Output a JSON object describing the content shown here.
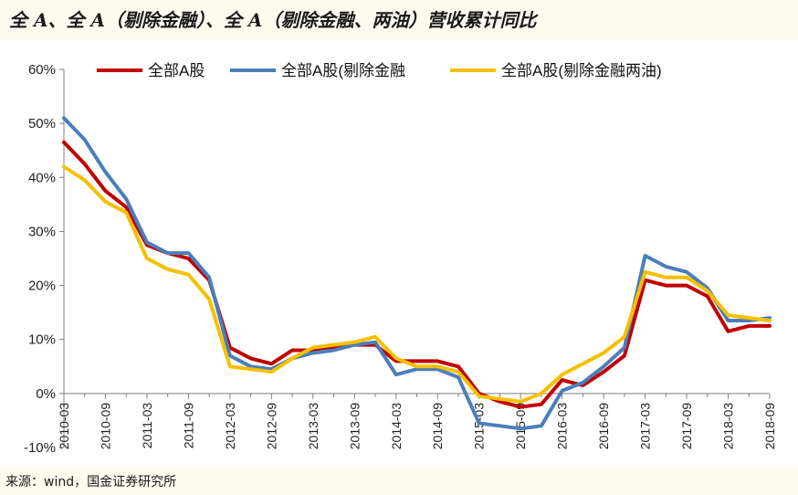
{
  "title": "全 A、全 A（剔除金融）、全 A（剔除金融、两油）营收累计同比",
  "source": "来源：wind，国金证券研究所",
  "chart_data": {
    "type": "line",
    "title": "全 A、全 A（剔除金融）、全 A（剔除金融、两油）营收累计同比",
    "xlabel": "",
    "ylabel": "",
    "ylim": [
      -10,
      60
    ],
    "yticks": [
      -10,
      0,
      10,
      20,
      30,
      40,
      50,
      60
    ],
    "ytick_labels": [
      "-10%",
      "0%",
      "10%",
      "20%",
      "30%",
      "40%",
      "50%",
      "60%"
    ],
    "x_tick_labels": [
      "2010-03",
      "2010-09",
      "2011-03",
      "2011-09",
      "2012-03",
      "2012-09",
      "2013-03",
      "2013-09",
      "2014-03",
      "2014-09",
      "2015-03",
      "2015-09",
      "2016-03",
      "2016-09",
      "2017-03",
      "2017-09",
      "2018-03",
      "2018-09"
    ],
    "categories": [
      "2010-03",
      "2010-06",
      "2010-09",
      "2010-12",
      "2011-03",
      "2011-06",
      "2011-09",
      "2011-12",
      "2012-03",
      "2012-06",
      "2012-09",
      "2012-12",
      "2013-03",
      "2013-06",
      "2013-09",
      "2013-12",
      "2014-03",
      "2014-06",
      "2014-09",
      "2014-12",
      "2015-03",
      "2015-06",
      "2015-09",
      "2015-12",
      "2016-03",
      "2016-06",
      "2016-09",
      "2016-12",
      "2017-03",
      "2017-06",
      "2017-09",
      "2017-12",
      "2018-03",
      "2018-06",
      "2018-09"
    ],
    "grid": false,
    "legend_position": "top",
    "series": [
      {
        "name": "全部A股",
        "color": "#c00000",
        "values": [
          46.5,
          42.5,
          37.5,
          34.5,
          27.5,
          26,
          25,
          21,
          8.5,
          6.5,
          5.5,
          8,
          8,
          8.5,
          9,
          9,
          6,
          6,
          6,
          5,
          0,
          -1.5,
          -2.5,
          -2,
          2.5,
          1.5,
          4,
          7,
          21,
          20,
          20,
          18,
          11.5,
          12.5,
          12.5
        ]
      },
      {
        "name": "全部A股(剔除金融",
        "color": "#4a7ebb",
        "values": [
          51,
          47,
          41,
          36,
          28,
          26,
          26,
          21.5,
          7,
          5,
          4.5,
          6.5,
          7.5,
          8,
          9,
          9.5,
          3.5,
          4.5,
          4.5,
          3,
          -5.5,
          -6,
          -6.5,
          -6,
          0.5,
          2,
          5,
          8.5,
          25.5,
          23.5,
          22.5,
          19.5,
          13.5,
          13.5,
          14
        ]
      },
      {
        "name": "全部A股(剔除金融两油)",
        "color": "#f5c000",
        "values": [
          42,
          39.5,
          35.5,
          33.5,
          25,
          23,
          22,
          17.5,
          5,
          4.5,
          4,
          6.5,
          8.5,
          9,
          9.5,
          10.5,
          6.5,
          5,
          5,
          4,
          -0.5,
          -1,
          -1.5,
          0,
          3.5,
          5.5,
          7.5,
          10.5,
          22.5,
          21.5,
          21.5,
          19,
          14.5,
          14,
          13.5
        ]
      }
    ]
  }
}
